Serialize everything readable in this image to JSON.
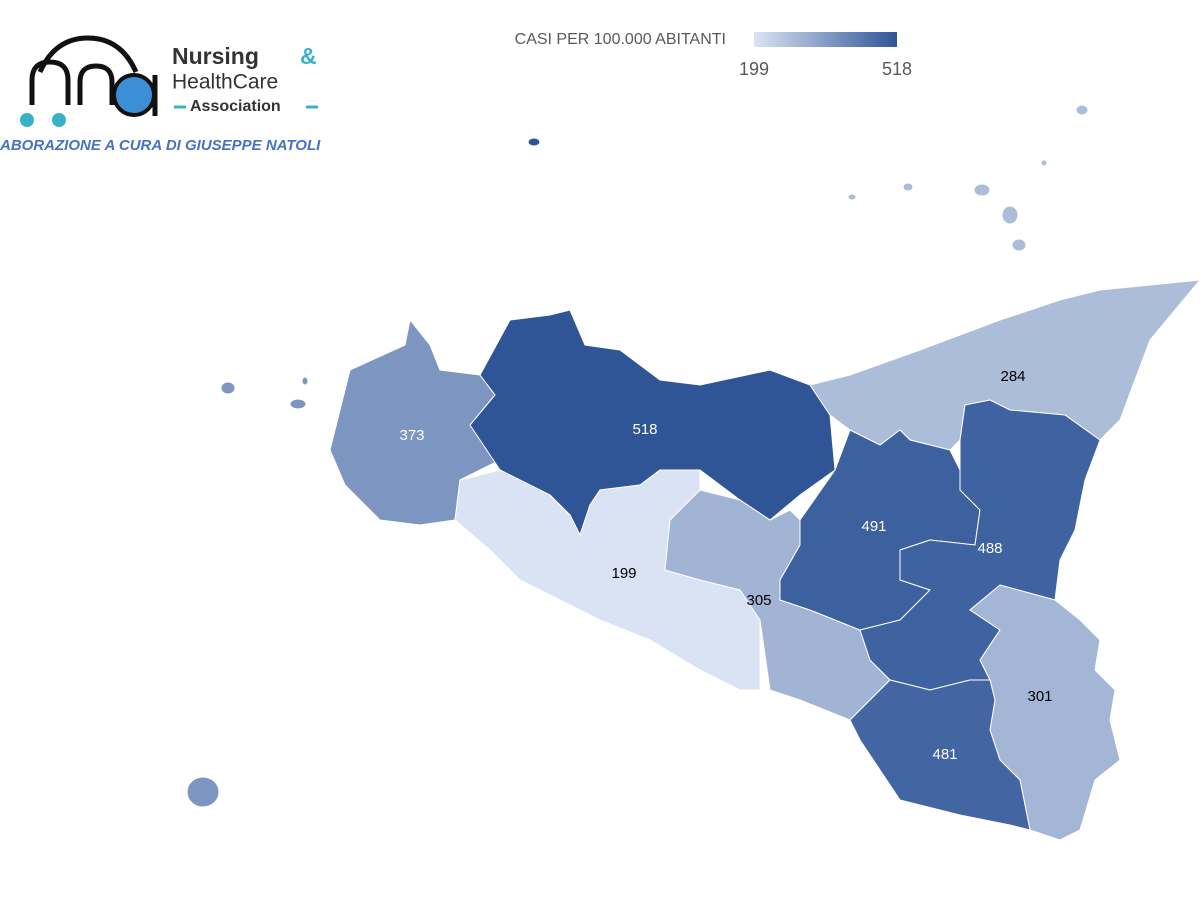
{
  "logo": {
    "mark": "nha",
    "line1": "Nursing",
    "amp": "&",
    "line2": "HealthCare",
    "line3": "Association"
  },
  "credit": "ABORAZIONE A CURA DI GIUSEPPE NATOLI",
  "chart_data": {
    "type": "choropleth",
    "legend_title": "CASI PER 100.000 ABITANTI",
    "scale_min": 199,
    "scale_max": 518,
    "color_min": "#dae3f3",
    "color_max": "#2f5597",
    "values": [
      373,
      518,
      284,
      199,
      305,
      491,
      488,
      301,
      481
    ]
  }
}
